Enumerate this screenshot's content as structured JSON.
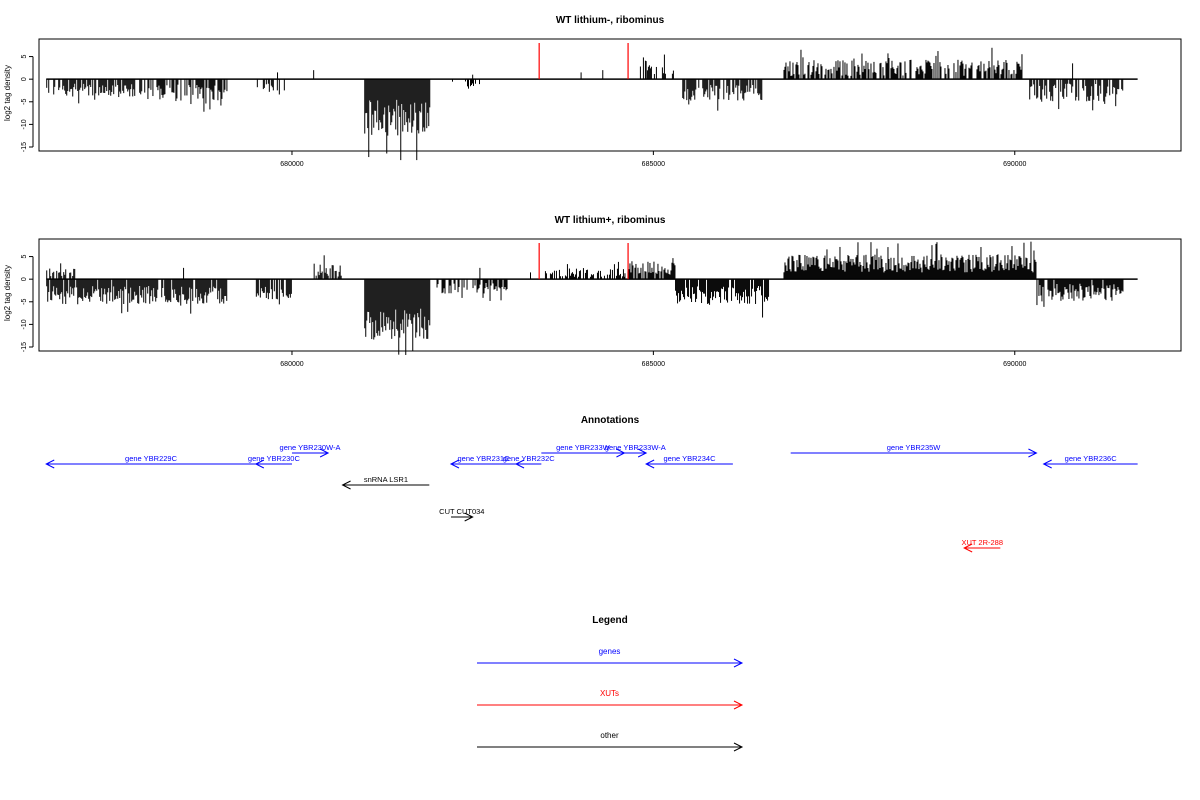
{
  "chart_data": [
    {
      "type": "bar",
      "title": "WT lithium-, ribominus",
      "ylabel": "log2 tag density",
      "xlabel": "",
      "xlim": [
        676500,
        692300
      ],
      "ylim": [
        -15,
        8
      ],
      "yticks": [
        -15,
        -10,
        -5,
        0,
        5
      ],
      "xticks": [
        680000,
        685000,
        690000
      ],
      "xtick_labels": [
        "680000",
        "685000",
        "690000"
      ],
      "regions": [
        {
          "start": 676600,
          "end": 678000,
          "sign": -1,
          "mean": 2.5,
          "var": 1.5,
          "density": 0.7
        },
        {
          "start": 678000,
          "end": 679100,
          "sign": -1,
          "mean": 3.0,
          "var": 1.8,
          "density": 0.7
        },
        {
          "start": 679500,
          "end": 679900,
          "sign": -1,
          "mean": 2.0,
          "var": 1.0,
          "density": 0.5
        },
        {
          "start": 681000,
          "end": 681900,
          "sign": -1,
          "mean": 8.5,
          "var": 4.0,
          "density": 1.0
        },
        {
          "start": 682200,
          "end": 682600,
          "sign": -1,
          "mean": 1.5,
          "var": 1.0,
          "density": 0.3
        },
        {
          "start": 684800,
          "end": 685300,
          "sign": 1,
          "mean": 2.5,
          "var": 1.5,
          "density": 0.4
        },
        {
          "start": 685400,
          "end": 686500,
          "sign": -1,
          "mean": 3.0,
          "var": 1.8,
          "density": 0.7
        },
        {
          "start": 686800,
          "end": 690100,
          "sign": 1,
          "mean": 2.5,
          "var": 1.8,
          "density": 0.7
        },
        {
          "start": 690200,
          "end": 691500,
          "sign": -1,
          "mean": 3.0,
          "var": 2.0,
          "density": 0.7
        }
      ],
      "spikes": [
        {
          "x": 679800,
          "value": 1.5
        },
        {
          "x": 680300,
          "value": 2.0
        },
        {
          "x": 682500,
          "value": 1.0
        },
        {
          "x": 684000,
          "value": 1.5
        },
        {
          "x": 684300,
          "value": 2.0
        },
        {
          "x": 684900,
          "value": 4.0
        },
        {
          "x": 690800,
          "value": 3.5
        }
      ],
      "highlights": [
        {
          "x": 683420,
          "value": 8.0,
          "color": "#ff0000"
        },
        {
          "x": 684650,
          "value": 8.0,
          "color": "#ff0000"
        }
      ]
    },
    {
      "type": "bar",
      "title": "WT lithium+, ribominus",
      "ylabel": "log2 tag density",
      "xlabel": "",
      "xlim": [
        676500,
        692300
      ],
      "ylim": [
        -15,
        8
      ],
      "yticks": [
        -15,
        -10,
        -5,
        0,
        5
      ],
      "xticks": [
        680000,
        685000,
        690000
      ],
      "xtick_labels": [
        "680000",
        "685000",
        "690000"
      ],
      "regions": [
        {
          "start": 676600,
          "end": 677000,
          "sign": 1,
          "mean": 1.5,
          "var": 1.0,
          "density": 0.6
        },
        {
          "start": 676600,
          "end": 679100,
          "sign": -1,
          "mean": 3.5,
          "var": 2.0,
          "density": 0.9
        },
        {
          "start": 679500,
          "end": 680000,
          "sign": -1,
          "mean": 3.0,
          "var": 1.5,
          "density": 0.8
        },
        {
          "start": 680300,
          "end": 680700,
          "sign": 1,
          "mean": 2.0,
          "var": 1.5,
          "density": 0.7
        },
        {
          "start": 681000,
          "end": 681900,
          "sign": -1,
          "mean": 10.0,
          "var": 3.5,
          "density": 1.0
        },
        {
          "start": 682000,
          "end": 683000,
          "sign": -1,
          "mean": 2.0,
          "var": 1.2,
          "density": 0.6
        },
        {
          "start": 683500,
          "end": 684600,
          "sign": 1,
          "mean": 1.5,
          "var": 1.0,
          "density": 0.6
        },
        {
          "start": 684600,
          "end": 685300,
          "sign": 1,
          "mean": 2.5,
          "var": 1.5,
          "density": 0.8
        },
        {
          "start": 685300,
          "end": 686600,
          "sign": -1,
          "mean": 3.5,
          "var": 2.0,
          "density": 0.9
        },
        {
          "start": 686800,
          "end": 690300,
          "sign": 1,
          "mean": 3.5,
          "var": 2.0,
          "density": 1.0
        },
        {
          "start": 690300,
          "end": 691500,
          "sign": -1,
          "mean": 3.0,
          "var": 2.0,
          "density": 0.9
        }
      ],
      "spikes": [
        {
          "x": 676800,
          "value": 3.5
        },
        {
          "x": 678500,
          "value": 2.5
        },
        {
          "x": 682600,
          "value": 2.5
        },
        {
          "x": 683300,
          "value": 1.5
        }
      ],
      "highlights": [
        {
          "x": 683420,
          "value": 8.0,
          "color": "#ff0000"
        },
        {
          "x": 684650,
          "value": 8.0,
          "color": "#ff0000"
        }
      ]
    }
  ],
  "annotations": {
    "title": "Annotations",
    "features": [
      {
        "label": "gene YBR229C",
        "start": 676600,
        "end": 679500,
        "strand": "-",
        "color": "#0000ff"
      },
      {
        "label": "gene YBR230C",
        "start": 679500,
        "end": 680000,
        "strand": "-",
        "color": "#0000ff"
      },
      {
        "label": "gene YBR230W-A",
        "start": 680000,
        "end": 680500,
        "strand": "+",
        "color": "#0000ff"
      },
      {
        "label": "snRNA LSR1",
        "start": 680700,
        "end": 681900,
        "strand": "-",
        "color": "#000000"
      },
      {
        "label": "gene YBR231C",
        "start": 682200,
        "end": 683100,
        "strand": "-",
        "color": "#0000ff"
      },
      {
        "label": "gene YBR232C",
        "start": 683100,
        "end": 683450,
        "strand": "-",
        "color": "#0000ff"
      },
      {
        "label": "gene YBR233W",
        "start": 683450,
        "end": 684600,
        "strand": "+",
        "color": "#0000ff"
      },
      {
        "label": "gene YBR233W-A",
        "start": 684600,
        "end": 684900,
        "strand": "+",
        "color": "#0000ff"
      },
      {
        "label": "gene YBR234C",
        "start": 684900,
        "end": 686100,
        "strand": "-",
        "color": "#0000ff"
      },
      {
        "label": "gene YBR235W",
        "start": 686900,
        "end": 690300,
        "strand": "+",
        "color": "#0000ff"
      },
      {
        "label": "gene YBR236C",
        "start": 690400,
        "end": 691700,
        "strand": "-",
        "color": "#0000ff"
      },
      {
        "label": "CUT CUT034",
        "start": 682200,
        "end": 682500,
        "strand": "+",
        "color": "#000000"
      },
      {
        "label": "XUT 2R-288",
        "start": 689300,
        "end": 689800,
        "strand": "-",
        "color": "#ff0000"
      }
    ]
  },
  "legend": {
    "title": "Legend",
    "items": [
      {
        "label": "genes",
        "color": "#0000ff"
      },
      {
        "label": "XUTs",
        "color": "#ff0000"
      },
      {
        "label": "other",
        "color": "#000000"
      }
    ]
  }
}
